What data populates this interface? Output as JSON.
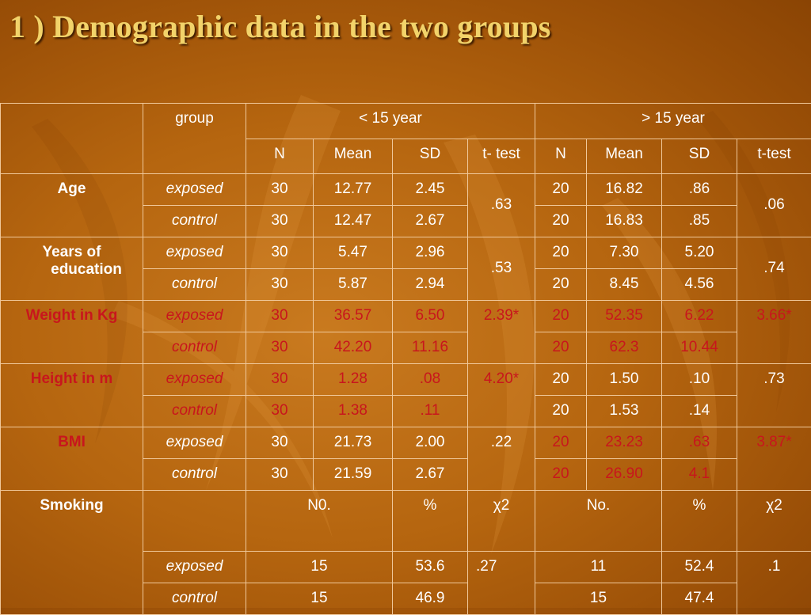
{
  "title": "1 ) Demographic data in the two groups",
  "header": {
    "group": "group",
    "lt15": "< 15 year",
    "gt15": "> 15 year",
    "cols": {
      "n": "N",
      "mean": "Mean",
      "sd": "SD",
      "ttest_lt": "t- test",
      "ttest_gt": "t-test"
    }
  },
  "rows": {
    "age": {
      "label": "Age",
      "exposed": {
        "group": "exposed",
        "n1": "30",
        "m1": "12.77",
        "sd1": "2.45",
        "n2": "20",
        "m2": "16.82",
        "sd2": ".86"
      },
      "control": {
        "group": "control",
        "n1": "30",
        "m1": "12.47",
        "sd1": "2.67",
        "n2": "20",
        "m2": "16.83",
        "sd2": ".85"
      },
      "t1": ".63",
      "t2": ".06"
    },
    "edu": {
      "label_line1": "Years of",
      "label_line2": "education",
      "exposed": {
        "group": "exposed",
        "n1": "30",
        "m1": "5.47",
        "sd1": "2.96",
        "n2": "20",
        "m2": "7.30",
        "sd2": "5.20"
      },
      "control": {
        "group": "control",
        "n1": "30",
        "m1": "5.87",
        "sd1": "2.94",
        "n2": "20",
        "m2": "8.45",
        "sd2": "4.56"
      },
      "t1": ".53",
      "t2": ".74"
    },
    "weight": {
      "label": "Weight in Kg",
      "exposed": {
        "group": "exposed",
        "n1": "30",
        "m1": "36.57",
        "sd1": "6.50",
        "n2": "20",
        "m2": "52.35",
        "sd2": "6.22"
      },
      "control": {
        "group": "control",
        "n1": "30",
        "m1": "42.20",
        "sd1": "11.16",
        "n2": "20",
        "m2": "62.3",
        "sd2": "10.44"
      },
      "t1": "2.39*",
      "t2": "3.66*"
    },
    "height": {
      "label": "Height in m",
      "exposed": {
        "group": "exposed",
        "n1": "30",
        "m1": "1.28",
        "sd1": ".08",
        "n2": "20",
        "m2": "1.50",
        "sd2": ".10"
      },
      "control": {
        "group": "control",
        "n1": "30",
        "m1": "1.38",
        "sd1": ".11",
        "n2": "20",
        "m2": "1.53",
        "sd2": ".14"
      },
      "t1": "4.20*",
      "t2": ".73"
    },
    "bmi": {
      "label": "BMI",
      "exposed": {
        "group": "exposed",
        "n1": "30",
        "m1": "21.73",
        "sd1": "2.00",
        "n2": "20",
        "m2": "23.23",
        "sd2": ".63"
      },
      "control": {
        "group": "control",
        "n1": "30",
        "m1": "21.59",
        "sd1": "2.67",
        "n2": "20",
        "m2": "26.90",
        "sd2": "4.1"
      },
      "t1": ".22",
      "t2": "3.87*"
    },
    "smoking": {
      "label": "Smoking",
      "h_no1": "N0.",
      "h_pct1": "%",
      "h_chi1": "χ2",
      "h_no2": "No.",
      "h_pct2": "%",
      "h_chi2": "χ2",
      "exposed": {
        "group": "exposed",
        "no1": "15",
        "pct1": "53.6",
        "no2": "11",
        "pct2": "52.4"
      },
      "control": {
        "group": "control",
        "no1": "15",
        "pct1": "46.9",
        "no2": "15",
        "pct2": "47.4"
      },
      "chi1": ".27",
      "chi2": ".1"
    }
  },
  "colors": {
    "background": "#b5650f",
    "title": "#f2d36a",
    "significant": "#c8161d",
    "border": "#f0c89a",
    "text": "#ffffff"
  }
}
